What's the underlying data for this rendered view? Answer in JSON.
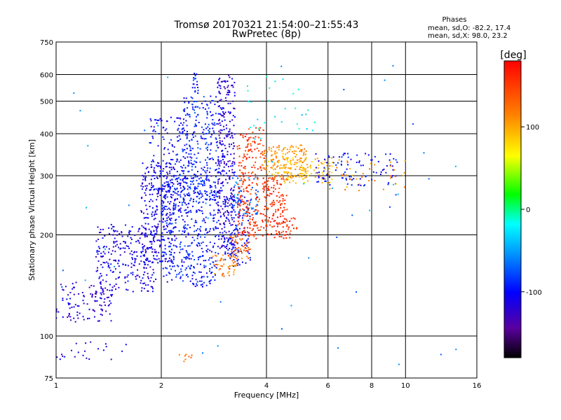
{
  "chart_data": {
    "type": "scatter",
    "title": "Tromsø 20170321 21:54:00–21:55:43",
    "subtitle": "RwPretec (8p)",
    "xlabel": "Frequency [MHz]",
    "ylabel": "Stationary phase Virtual Height [km]",
    "x_scale": "log",
    "y_scale": "log",
    "xlim": [
      1,
      16
    ],
    "ylim": [
      75,
      750
    ],
    "x_ticks": [
      "1",
      "2",
      "4",
      "6",
      "8",
      "10",
      "16"
    ],
    "y_ticks": [
      "75",
      "100",
      "200",
      "300",
      "400",
      "500",
      "600",
      "750"
    ],
    "grid": true,
    "info": {
      "heading": "Phases",
      "line1": "mean, sd,O: -82.2, 17.4",
      "line2": "mean, sd,X: 98.0, 23.2"
    },
    "colorbar": {
      "label": "[deg]",
      "range": [
        -180,
        180
      ],
      "ticks": [
        "100",
        "0",
        "-100"
      ],
      "colormap": "rainbow"
    },
    "clusters": [
      {
        "fmin": 1.0,
        "fmax": 1.45,
        "hmin": 110,
        "hmax": 145,
        "phase": -120,
        "count": 110
      },
      {
        "fmin": 1.0,
        "fmax": 1.6,
        "hmin": 85,
        "hmax": 97,
        "phase": -115,
        "count": 22
      },
      {
        "fmin": 1.3,
        "fmax": 1.95,
        "hmin": 135,
        "hmax": 215,
        "phase": -112,
        "count": 260
      },
      {
        "fmin": 1.75,
        "fmax": 2.2,
        "hmin": 165,
        "hmax": 330,
        "phase": -110,
        "count": 260
      },
      {
        "fmin": 1.85,
        "fmax": 2.4,
        "hmin": 230,
        "hmax": 450,
        "phase": -105,
        "count": 170
      },
      {
        "fmin": 2.0,
        "fmax": 2.9,
        "hmin": 140,
        "hmax": 300,
        "phase": -95,
        "count": 420
      },
      {
        "fmin": 2.3,
        "fmax": 2.9,
        "hmin": 250,
        "hmax": 520,
        "phase": -92,
        "count": 260
      },
      {
        "fmin": 2.45,
        "fmax": 2.55,
        "hmin": 480,
        "hmax": 620,
        "phase": -95,
        "count": 25
      },
      {
        "fmin": 2.9,
        "fmax": 3.25,
        "hmin": 175,
        "hmax": 600,
        "phase": -118,
        "count": 320
      },
      {
        "fmin": 3.0,
        "fmax": 3.6,
        "hmin": 160,
        "hmax": 260,
        "phase": -100,
        "count": 130
      },
      {
        "fmin": 3.2,
        "fmax": 3.8,
        "hmin": 230,
        "hmax": 300,
        "phase": -65,
        "count": 60
      },
      {
        "fmin": 2.8,
        "fmax": 3.3,
        "hmin": 150,
        "hmax": 175,
        "phase": 120,
        "count": 50
      },
      {
        "fmin": 3.15,
        "fmax": 3.6,
        "hmin": 170,
        "hmax": 200,
        "phase": 130,
        "count": 45
      },
      {
        "fmin": 3.3,
        "fmax": 3.95,
        "hmin": 195,
        "hmax": 420,
        "phase": 155,
        "count": 230
      },
      {
        "fmin": 3.9,
        "fmax": 4.6,
        "hmin": 200,
        "hmax": 300,
        "phase": 155,
        "count": 130
      },
      {
        "fmin": 4.2,
        "fmax": 4.9,
        "hmin": 195,
        "hmax": 225,
        "phase": 160,
        "count": 40
      },
      {
        "fmin": 3.9,
        "fmax": 5.2,
        "hmin": 295,
        "hmax": 370,
        "phase": 105,
        "count": 170
      },
      {
        "fmin": 4.5,
        "fmax": 6.2,
        "hmin": 285,
        "hmax": 340,
        "phase": 90,
        "count": 90
      },
      {
        "fmin": 5.5,
        "fmax": 9.5,
        "hmin": 280,
        "hmax": 350,
        "phase": -100,
        "count": 100
      },
      {
        "fmin": 6.0,
        "fmax": 10.0,
        "hmin": 270,
        "hmax": 340,
        "phase": 110,
        "count": 40
      },
      {
        "fmin": 3.5,
        "fmax": 5.5,
        "hmin": 380,
        "hmax": 600,
        "phase": -20,
        "count": 30
      },
      {
        "fmin": 1.0,
        "fmax": 16.0,
        "hmin": 80,
        "hmax": 650,
        "phase": -60,
        "count": 50
      },
      {
        "fmin": 2.25,
        "fmax": 2.45,
        "hmin": 83,
        "hmax": 90,
        "phase": 120,
        "count": 8
      }
    ]
  }
}
